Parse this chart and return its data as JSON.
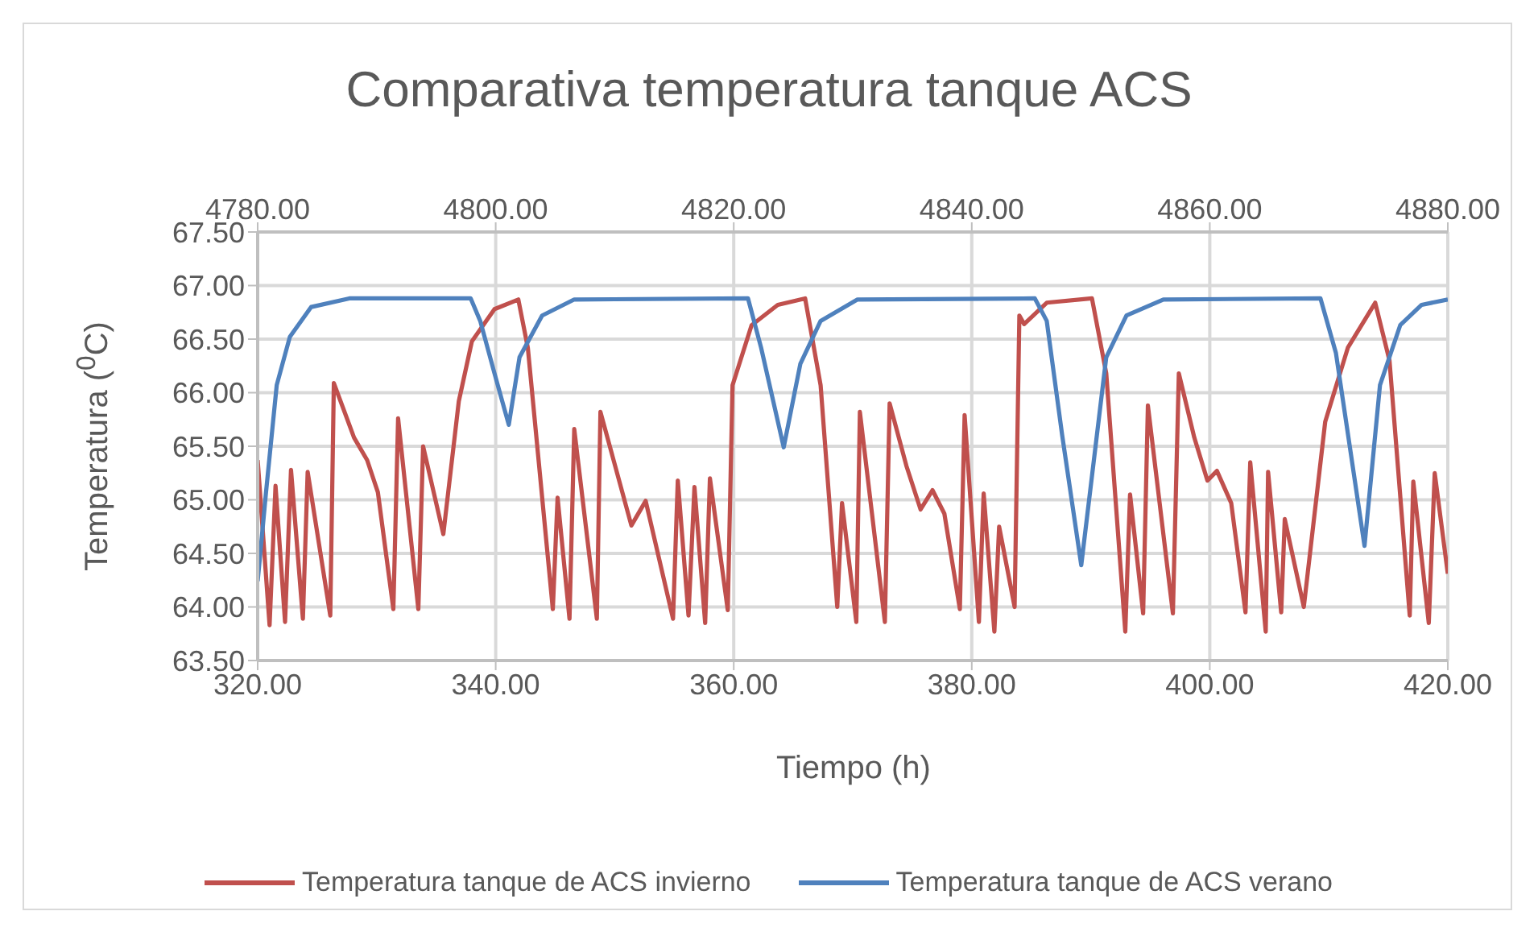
{
  "chart_data": {
    "type": "line",
    "title": "Comparativa temperatura tanque ACS",
    "xlabel": "Tiempo (h)",
    "ylabel": "Temperatura ($^{0}$C)",
    "xlim": [
      320,
      420
    ],
    "xticks": [
      {
        "value": 320,
        "label": "320.00"
      },
      {
        "value": 340,
        "label": "340.00"
      },
      {
        "value": 360,
        "label": "360.00"
      },
      {
        "value": 380,
        "label": "380.00"
      },
      {
        "value": 400,
        "label": "400.00"
      },
      {
        "value": 420,
        "label": "420.00"
      }
    ],
    "x2lim": [
      4780,
      4880
    ],
    "x2ticks": [
      {
        "value": 4780,
        "label": "4780.00"
      },
      {
        "value": 4800,
        "label": "4800.00"
      },
      {
        "value": 4820,
        "label": "4820.00"
      },
      {
        "value": 4840,
        "label": "4840.00"
      },
      {
        "value": 4860,
        "label": "4860.00"
      },
      {
        "value": 4880,
        "label": "4880.00"
      }
    ],
    "ylim": [
      63.5,
      67.5
    ],
    "yticks": [
      {
        "value": 63.5,
        "label": "63.50"
      },
      {
        "value": 64,
        "label": "64.00"
      },
      {
        "value": 64.5,
        "label": "64.50"
      },
      {
        "value": 65,
        "label": "65.00"
      },
      {
        "value": 65.5,
        "label": "65.50"
      },
      {
        "value": 66,
        "label": "66.00"
      },
      {
        "value": 66.5,
        "label": "66.50"
      },
      {
        "value": 67,
        "label": "67.00"
      },
      {
        "value": 67.5,
        "label": "67.50"
      }
    ],
    "grid": true,
    "legend": "bottom",
    "series": [
      {
        "name": "Temperatura tanque de ACS invierno",
        "color": "#c0504d",
        "x": [
          320,
          321,
          321.5,
          322.3,
          322.8,
          323.8,
          324.2,
          326.1,
          326.4,
          328.1,
          329.2,
          330.1,
          331.4,
          331.8,
          333.5,
          333.9,
          335.6,
          336.9,
          338,
          339.9,
          341.9,
          342.7,
          344.8,
          345.2,
          346.2,
          346.6,
          348.5,
          348.8,
          351.4,
          352.6,
          354.9,
          355.3,
          356.2,
          356.7,
          357.6,
          358,
          359.5,
          359.9,
          361.5,
          363.7,
          366,
          367.3,
          368.7,
          369.1,
          370.3,
          370.6,
          372.7,
          373.1,
          374.5,
          375.7,
          376.7,
          377.7,
          379,
          379.4,
          380.6,
          381,
          381.9,
          382.3,
          383.6,
          384,
          384.4,
          386.3,
          390.1,
          391.3,
          392.9,
          393.3,
          394.4,
          394.8,
          396.9,
          397.4,
          398.7,
          399.8,
          400.6,
          401.8,
          403,
          403.4,
          404.7,
          404.9,
          406,
          406.3,
          407.9,
          409.7,
          411.6,
          413.9,
          415.1,
          416.8,
          417.1,
          418.4,
          418.9,
          420
        ],
        "values": [
          65.37,
          63.83,
          65.13,
          63.86,
          65.28,
          63.89,
          65.26,
          63.92,
          66.09,
          65.58,
          65.37,
          65.07,
          63.98,
          65.76,
          63.98,
          65.5,
          64.68,
          65.92,
          66.48,
          66.78,
          66.87,
          66.42,
          63.98,
          65.02,
          63.89,
          65.66,
          63.89,
          65.82,
          64.76,
          64.99,
          63.89,
          65.18,
          63.92,
          65.12,
          63.85,
          65.2,
          63.97,
          66.07,
          66.63,
          66.82,
          66.88,
          66.07,
          64,
          64.97,
          63.86,
          65.82,
          63.86,
          65.9,
          65.32,
          64.91,
          65.09,
          64.87,
          63.98,
          65.79,
          63.86,
          65.06,
          63.77,
          64.75,
          64,
          66.72,
          66.64,
          66.84,
          66.88,
          66.18,
          63.77,
          65.05,
          63.94,
          65.88,
          63.94,
          66.18,
          65.58,
          65.18,
          65.27,
          64.97,
          63.95,
          65.35,
          63.77,
          65.26,
          63.95,
          64.82,
          64,
          65.73,
          66.42,
          66.84,
          66.3,
          63.92,
          65.17,
          63.85,
          65.25,
          64.31
        ]
      },
      {
        "name": "Temperatura tanque de ACS verano",
        "color": "#4f81bd",
        "axis": "x2",
        "x": [
          4780,
          4780.7,
          4781.6,
          4782.7,
          4784.5,
          4787.7,
          4797.9,
          4798.7,
          4799.9,
          4801.1,
          4802,
          4803.9,
          4806.6,
          4821.2,
          4822.3,
          4824.2,
          4825.6,
          4827.3,
          4830.4,
          4845.3,
          4846.3,
          4847.6,
          4849.2,
          4851.3,
          4853,
          4856.1,
          4869.3,
          4870.6,
          4873,
          4874.3,
          4876,
          4877.8,
          4880
        ],
        "values": [
          64.24,
          65.07,
          66.07,
          66.52,
          66.8,
          66.88,
          66.88,
          66.67,
          66.18,
          65.7,
          66.33,
          66.72,
          66.87,
          66.88,
          66.42,
          65.49,
          66.27,
          66.67,
          66.87,
          66.88,
          66.67,
          65.6,
          64.39,
          66.33,
          66.72,
          66.87,
          66.88,
          66.37,
          64.57,
          66.07,
          66.63,
          66.82,
          66.87
        ]
      }
    ]
  }
}
